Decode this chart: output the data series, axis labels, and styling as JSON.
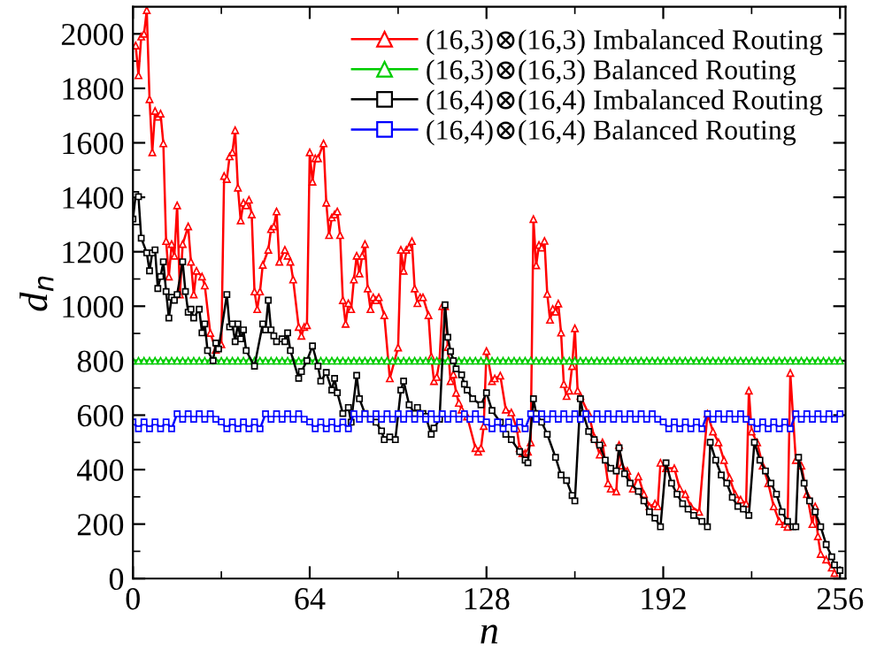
{
  "chart_data": {
    "type": "line",
    "xlabel": "n",
    "ylabel": "d$_{n}$",
    "xlim": [
      0,
      258
    ],
    "ylim": [
      0,
      2100
    ],
    "xticks": [
      0,
      {
        "value": 32,
        "label": null
      },
      64,
      {
        "value": 96,
        "label": null
      },
      128,
      {
        "value": 160,
        "label": null
      },
      192,
      {
        "value": 224,
        "label": null
      },
      256
    ],
    "yticks": [
      0,
      {
        "value": 100,
        "label": null
      },
      200,
      {
        "value": 300,
        "label": null
      },
      400,
      {
        "value": 500,
        "label": null
      },
      600,
      {
        "value": 700,
        "label": null
      },
      800,
      {
        "value": 900,
        "label": null
      },
      1000,
      {
        "value": 1100,
        "label": null
      },
      1200,
      {
        "value": 1300,
        "label": null
      },
      1400,
      {
        "value": 1500,
        "label": null
      },
      1600,
      {
        "value": 1700,
        "label": null
      },
      1800,
      {
        "value": 1900,
        "label": null
      },
      2000
    ],
    "grid": false,
    "legend": "top right",
    "line_style": "solid",
    "series": [
      {
        "name": "(16,3)⊗(16,3) Imbalanced Routing",
        "color": "#ff0000",
        "marker": "triangle",
        "x": [
          1,
          2,
          3,
          4,
          5,
          6,
          7,
          8,
          9,
          10,
          11,
          12,
          13,
          14,
          15,
          16,
          17,
          18,
          20,
          21,
          22,
          23,
          25,
          26,
          28,
          30,
          32,
          33,
          34,
          35,
          36,
          37,
          38,
          39,
          40,
          41,
          42,
          43,
          44,
          45,
          46,
          47,
          49,
          50,
          51,
          52,
          53,
          55,
          56,
          57,
          58,
          60,
          61,
          62,
          63,
          64,
          65,
          66,
          67,
          69,
          70,
          71,
          72,
          73,
          74,
          75,
          76,
          77,
          78,
          79,
          80,
          81,
          82,
          83,
          84,
          85,
          86,
          87,
          88,
          89,
          91,
          93,
          96,
          97,
          98,
          99,
          100,
          101,
          102,
          103,
          104,
          105,
          107,
          108,
          109,
          110,
          111,
          112,
          113,
          114,
          115,
          116,
          117,
          118,
          119,
          121,
          124,
          125,
          126,
          127,
          128,
          130,
          131,
          133,
          135,
          137,
          139,
          140,
          141,
          142,
          143,
          144,
          145,
          146,
          147,
          148,
          149,
          150,
          151,
          152,
          153,
          154,
          155,
          156,
          157,
          158,
          159,
          160,
          161,
          162,
          165,
          167,
          169,
          170,
          172,
          173,
          175,
          176,
          177,
          179,
          181,
          183,
          185,
          187,
          189,
          190,
          191,
          193,
          196,
          198,
          200,
          202,
          205,
          208,
          210,
          212,
          214,
          216,
          218,
          220,
          222,
          223,
          224,
          226,
          228,
          230,
          232,
          234,
          236,
          237,
          238,
          240,
          242,
          244,
          246,
          247,
          248,
          249,
          251,
          253,
          254
        ],
        "values": [
          1957,
          1848,
          1990,
          2000,
          2087,
          1760,
          1565,
          1717,
          1696,
          1707,
          1598,
          1239,
          1109,
          1228,
          1185,
          1370,
          1043,
          1228,
          1293,
          1163,
          1043,
          1130,
          1109,
          1076,
          902,
          840,
          860,
          1478,
          1467,
          1550,
          1565,
          1646,
          1435,
          1315,
          1380,
          1370,
          1391,
          1337,
          1054,
          989,
          1054,
          1152,
          1207,
          1283,
          1293,
          1348,
          1163,
          1207,
          1185,
          1163,
          1098,
          924,
          891,
          924,
          930,
          1565,
          1457,
          1543,
          1543,
          1598,
          1380,
          1261,
          1326,
          1337,
          1348,
          1261,
          1022,
          935,
          1011,
          989,
          1098,
          1185,
          1120,
          1185,
          1228,
          1065,
          989,
          1033,
          1022,
          1033,
          967,
          735,
          848,
          1207,
          1130,
          1207,
          1217,
          1239,
          1065,
          1011,
          1033,
          1033,
          967,
          815,
          725,
          740,
          800,
          1000,
          1000,
          850,
          725,
          750,
          682,
          645,
          620,
          595,
          479,
          466,
          479,
          560,
          835,
          725,
          735,
          745,
          620,
          610,
          550,
          479,
          460,
          460,
          466,
          500,
          1320,
          1150,
          1225,
          1215,
          1240,
          1045,
          950,
          990,
          980,
          1010,
          903,
          714,
          670,
          690,
          780,
          919,
          690,
          670,
          605,
          520,
          455,
          500,
          350,
          330,
          320,
          490,
          415,
          395,
          330,
          375,
          310,
          265,
          275,
          265,
          425,
          405,
          405,
          330,
          310,
          265,
          245,
          605,
          540,
          500,
          435,
          370,
          310,
          290,
          275,
          690,
          540,
          500,
          415,
          350,
          265,
          210,
          200,
          190,
          755,
          435,
          415,
          310,
          200,
          265,
          155,
          90,
          70,
          40,
          20
        ]
      },
      {
        "name": "(16,3)⊗(16,3) Balanced Routing",
        "color": "#00cc00",
        "marker": "triangle",
        "x": [
          0,
          2,
          4,
          6,
          8,
          10,
          12,
          14,
          16,
          18,
          20,
          22,
          24,
          26,
          28,
          30,
          32,
          34,
          36,
          38,
          40,
          42,
          44,
          46,
          48,
          50,
          52,
          54,
          56,
          58,
          60,
          62,
          64,
          66,
          68,
          70,
          72,
          74,
          76,
          78,
          80,
          82,
          84,
          86,
          88,
          90,
          92,
          94,
          96,
          98,
          100,
          102,
          104,
          106,
          108,
          110,
          112,
          114,
          116,
          118,
          120,
          122,
          124,
          126,
          128,
          130,
          132,
          134,
          136,
          138,
          140,
          142,
          144,
          146,
          148,
          150,
          152,
          154,
          156,
          158,
          160,
          162,
          164,
          166,
          168,
          170,
          172,
          174,
          176,
          178,
          180,
          182,
          184,
          186,
          188,
          190,
          192,
          194,
          196,
          198,
          200,
          202,
          204,
          206,
          208,
          210,
          212,
          214,
          216,
          218,
          220,
          222,
          224,
          226,
          228,
          230,
          232,
          234,
          236,
          238,
          240,
          242,
          244,
          246,
          248,
          250,
          252,
          254,
          256
        ],
        "values": [
          800,
          800,
          800,
          800,
          800,
          800,
          800,
          800,
          800,
          800,
          800,
          800,
          800,
          800,
          800,
          800,
          800,
          800,
          800,
          800,
          800,
          800,
          800,
          800,
          800,
          800,
          800,
          800,
          800,
          800,
          800,
          800,
          800,
          800,
          800,
          800,
          800,
          800,
          800,
          800,
          800,
          800,
          800,
          800,
          800,
          800,
          800,
          800,
          800,
          800,
          800,
          800,
          800,
          800,
          800,
          800,
          800,
          800,
          800,
          800,
          800,
          800,
          800,
          800,
          800,
          800,
          800,
          800,
          800,
          800,
          800,
          800,
          800,
          800,
          800,
          800,
          800,
          800,
          800,
          800,
          800,
          800,
          800,
          800,
          800,
          800,
          800,
          800,
          800,
          800,
          800,
          800,
          800,
          800,
          800,
          800,
          800,
          800,
          800,
          800,
          800,
          800,
          800,
          800,
          800,
          800,
          800,
          800,
          800,
          800,
          800,
          800,
          800,
          800,
          800,
          800,
          800,
          800,
          800,
          800,
          800,
          800,
          800,
          800,
          800,
          800,
          800,
          800,
          800
        ]
      },
      {
        "name": "(16,4)⊗(16,4) Imbalanced Routing",
        "color": "#000000",
        "marker": "square",
        "x": [
          0,
          1,
          2,
          3,
          5,
          6,
          7,
          8,
          9,
          10,
          11,
          12,
          13,
          14,
          15,
          16,
          18,
          19,
          20,
          21,
          22,
          24,
          25,
          26,
          27,
          29,
          30,
          31,
          34,
          35,
          36,
          37,
          38,
          39,
          40,
          41,
          44,
          47,
          48,
          49,
          50,
          51,
          52,
          54,
          55,
          56,
          57,
          60,
          61,
          63,
          65,
          67,
          68,
          70,
          72,
          73,
          74,
          76,
          78,
          79,
          81,
          82,
          84,
          86,
          88,
          90,
          91,
          93,
          95,
          97,
          98,
          100,
          102,
          103,
          105,
          106,
          108,
          109,
          111,
          113,
          114,
          115,
          116,
          117,
          119,
          120,
          121,
          123,
          126,
          128,
          130,
          133,
          135,
          137,
          140,
          142,
          143,
          145,
          146,
          148,
          150,
          153,
          155,
          157,
          159,
          160,
          162,
          163,
          165,
          167,
          169,
          171,
          173,
          175,
          176,
          178,
          180,
          183,
          185,
          187,
          189,
          191,
          193,
          195,
          197,
          199,
          201,
          203,
          206,
          208,
          209,
          211,
          213,
          215,
          217,
          219,
          221,
          223,
          225,
          227,
          229,
          231,
          233,
          235,
          237,
          239,
          240,
          241,
          243,
          245,
          247,
          249,
          251,
          253,
          254,
          256
        ],
        "values": [
          1320,
          1410,
          1402,
          1250,
          1196,
          1130,
          1196,
          1207,
          1065,
          1109,
          1163,
          1054,
          957,
          1033,
          1022,
          1043,
          1163,
          1054,
          978,
          989,
          957,
          989,
          902,
          935,
          837,
          800,
          865,
          843,
          1043,
          924,
          935,
          870,
          935,
          880,
          913,
          837,
          780,
          935,
          913,
          1022,
          913,
          891,
          870,
          880,
          870,
          902,
          837,
          735,
          760,
          800,
          854,
          780,
          725,
          757,
          692,
          735,
          682,
          606,
          628,
          574,
          746,
          660,
          606,
          585,
          574,
          542,
          510,
          520,
          510,
          692,
          725,
          638,
          606,
          628,
          606,
          595,
          530,
          552,
          585,
          1005,
          886,
          834,
          800,
          770,
          748,
          714,
          692,
          660,
          638,
          682,
          617,
          574,
          530,
          510,
          466,
          435,
          425,
          660,
          606,
          574,
          530,
          445,
          380,
          360,
          305,
          285,
          660,
          606,
          540,
          510,
          490,
          435,
          405,
          395,
          480,
          385,
          350,
          320,
          285,
          245,
          222,
          190,
          425,
          350,
          310,
          275,
          255,
          232,
          210,
          190,
          500,
          435,
          380,
          350,
          298,
          265,
          255,
          232,
          500,
          435,
          395,
          350,
          310,
          245,
          210,
          190,
          190,
          445,
          350,
          285,
          245,
          190,
          125,
          80,
          50,
          30
        ]
      },
      {
        "name": "(16,4)⊗(16,4) Balanced Routing",
        "color": "#0000ff",
        "marker": "square",
        "x": [
          0,
          2,
          4,
          6,
          8,
          10,
          12,
          14,
          16,
          18,
          20,
          22,
          24,
          26,
          28,
          30,
          32,
          34,
          36,
          38,
          40,
          42,
          44,
          46,
          48,
          50,
          52,
          54,
          56,
          58,
          60,
          62,
          64,
          66,
          68,
          70,
          72,
          74,
          76,
          78,
          80,
          82,
          84,
          86,
          88,
          90,
          92,
          94,
          96,
          98,
          100,
          102,
          104,
          106,
          108,
          110,
          112,
          114,
          116,
          118,
          120,
          122,
          124,
          126,
          128,
          130,
          132,
          134,
          136,
          138,
          140,
          142,
          144,
          146,
          148,
          150,
          152,
          154,
          156,
          158,
          160,
          162,
          164,
          166,
          168,
          170,
          172,
          174,
          176,
          178,
          180,
          182,
          184,
          186,
          188,
          190,
          192,
          194,
          196,
          198,
          200,
          202,
          204,
          206,
          208,
          210,
          212,
          214,
          216,
          218,
          220,
          222,
          224,
          226,
          228,
          230,
          232,
          234,
          236,
          238,
          240,
          242,
          244,
          246,
          248,
          250,
          252,
          254,
          256
        ],
        "values": [
          575,
          550,
          575,
          550,
          575,
          550,
          575,
          550,
          605,
          585,
          605,
          585,
          605,
          585,
          605,
          585,
          575,
          550,
          575,
          550,
          575,
          550,
          575,
          550,
          605,
          585,
          605,
          585,
          605,
          585,
          605,
          585,
          575,
          550,
          575,
          550,
          575,
          550,
          575,
          550,
          605,
          585,
          605,
          585,
          605,
          585,
          605,
          585,
          605,
          585,
          605,
          585,
          605,
          585,
          605,
          585,
          605,
          585,
          605,
          585,
          605,
          585,
          605,
          585,
          575,
          550,
          575,
          550,
          575,
          550,
          575,
          550,
          605,
          585,
          605,
          585,
          605,
          585,
          605,
          585,
          605,
          585,
          605,
          585,
          605,
          585,
          605,
          585,
          605,
          585,
          605,
          585,
          605,
          585,
          605,
          585,
          575,
          550,
          575,
          550,
          575,
          550,
          575,
          550,
          605,
          585,
          605,
          585,
          605,
          585,
          605,
          585,
          575,
          550,
          575,
          550,
          575,
          550,
          575,
          550,
          605,
          585,
          605,
          585,
          605,
          585,
          605,
          585,
          605
        ]
      }
    ]
  }
}
